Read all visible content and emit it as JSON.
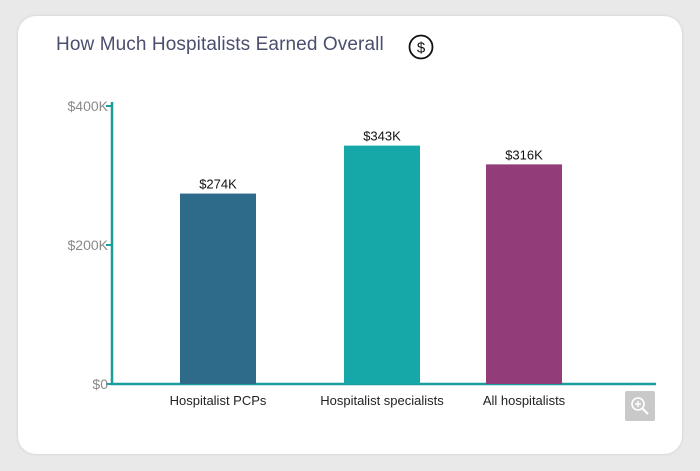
{
  "title": "How Much Hospitalists Earned Overall",
  "icons": {
    "title_icon": "dollar-circle-icon",
    "zoom_icon": "zoom-in-icon"
  },
  "chart_data": {
    "type": "bar",
    "categories": [
      "Hospitalist PCPs",
      "Hospitalist specialists",
      "All hospitalists"
    ],
    "values": [
      274,
      343,
      316
    ],
    "value_labels": [
      "$274K",
      "$343K",
      "$316K"
    ],
    "bar_colors": [
      "#2e6a89",
      "#16a8a8",
      "#933c7a"
    ],
    "axis_color": "#1a9d9d",
    "ylim": [
      0,
      400
    ],
    "yticks": [
      0,
      200,
      400
    ],
    "ytick_labels": [
      "$0",
      "$200K",
      "$400K"
    ],
    "grid": false,
    "legend": "none"
  }
}
